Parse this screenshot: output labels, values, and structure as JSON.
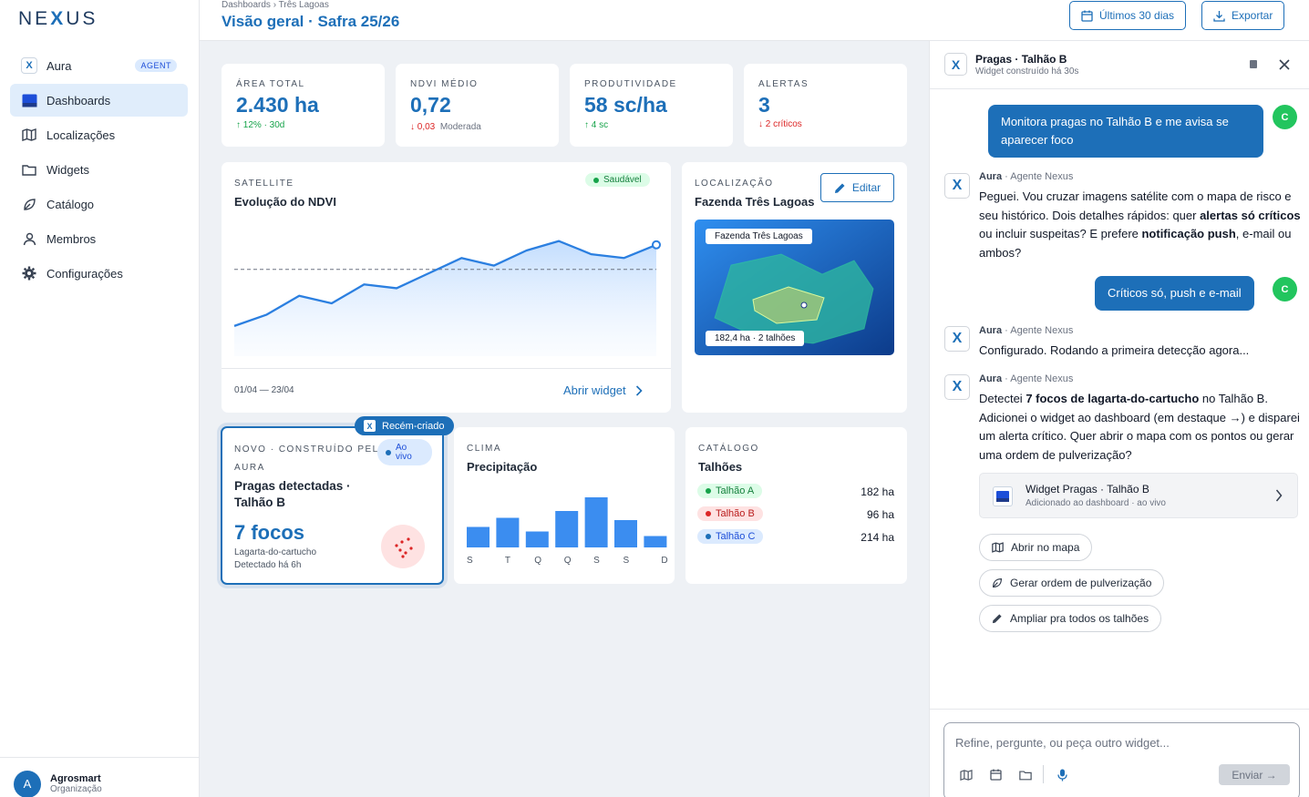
{
  "app": {
    "logo_left": "NE",
    "logo_x": "X",
    "logo_right": "US"
  },
  "sidebar": {
    "items": [
      {
        "label": "Aura",
        "badge": "AGENT",
        "icon": "aura-x-icon"
      },
      {
        "label": "Dashboards",
        "icon": "dashboard-icon",
        "active": true
      },
      {
        "label": "Localizações",
        "icon": "map-icon"
      },
      {
        "label": "Widgets",
        "icon": "folder-icon"
      },
      {
        "label": "Catálogo",
        "icon": "leaf-icon"
      },
      {
        "label": "Membros",
        "icon": "user-icon"
      },
      {
        "label": "Configurações",
        "icon": "gear-icon"
      }
    ],
    "org": {
      "avatar": "A",
      "name": "Agrosmart",
      "sub": "Organização"
    }
  },
  "header": {
    "breadcrumb": "Dashboards › Três Lagoas",
    "title": "Visão geral · Safra 25/26",
    "range_button": "Últimos 30 dias",
    "export_button": "Exportar"
  },
  "kpis": [
    {
      "label": "ÁREA TOTAL",
      "value": "2.430 ha",
      "delta": "↑ 12% · 30d",
      "note": "",
      "trend": "up"
    },
    {
      "label": "NDVI MÉDIO",
      "value": "0,72",
      "delta": "↓ 0,03",
      "note": "Moderada",
      "trend": "down"
    },
    {
      "label": "PRODUTIVIDADE",
      "value": "58 sc/ha",
      "delta": "↑ 4 sc",
      "note": "",
      "trend": "up"
    },
    {
      "label": "ALERTAS",
      "value": "3",
      "delta": "↓ 2 críticos",
      "note": "",
      "trend": "down"
    }
  ],
  "ndvi": {
    "section": "SATELLITE",
    "title": "Evolução do NDVI",
    "status": "Saudável",
    "range": "01/04 — 23/04",
    "open_link": "Abrir widget"
  },
  "location": {
    "section": "LOCALIZAÇÃO",
    "title": "Fazenda Três Lagoas",
    "edit": "Editar",
    "map_label": "Fazenda Três Lagoas",
    "map_caption": "182,4 ha · 2 talhões"
  },
  "pests": {
    "badge": "Recém-criado",
    "section_line1": "NOVO · CONSTRUÍDO PELA",
    "section_line2": "AURA",
    "live": "Ao vivo",
    "title_line1": "Pragas detectadas ·",
    "title_line2": "Talhão B",
    "value": "7 focos",
    "pest": "Lagarta-do-cartucho",
    "detected": "Detectado há 6h"
  },
  "rain": {
    "section": "CLIMA",
    "title": "Precipitação",
    "days": [
      "S",
      "T",
      "Q",
      "Q",
      "S",
      "S",
      "D"
    ]
  },
  "catalog": {
    "section": "CATÁLOGO",
    "title": "Talhões",
    "rows": [
      {
        "name": "Talhão A",
        "area": "182 ha",
        "color": "#16a34a",
        "bg": "#dcfce7",
        "fg": "#15803d"
      },
      {
        "name": "Talhão B",
        "area": "96 ha",
        "color": "#dc2626",
        "bg": "#fee2e2",
        "fg": "#b91c1c"
      },
      {
        "name": "Talhão C",
        "area": "214 ha",
        "color": "#1d6fb8",
        "bg": "#dbeafe",
        "fg": "#1d4ed8"
      }
    ]
  },
  "chat": {
    "title": "Pragas · Talhão B",
    "subtitle": "Widget construído há 30s",
    "user_initial": "C",
    "agent_name": "Aura",
    "agent_role": "· Agente Nexus",
    "msg_user1": "Monitora pragas no Talhão B e me avisa se aparecer foco",
    "msg_ai1_a": "Peguei. Vou cruzar imagens satélite com o mapa de risco e seu histórico. Dois detalhes rápidos: quer ",
    "msg_ai1_b": "alertas só críticos",
    "msg_ai1_c": " ou incluir suspeitas? E prefere ",
    "msg_ai1_d": "notificação push",
    "msg_ai1_e": ", e-mail ou ambos?",
    "msg_user2": "Críticos só, push e e-mail",
    "msg_ai2": "Configurado. Rodando a primeira detecção agora...",
    "msg_ai3_a": "Detectei ",
    "msg_ai3_b": "7 focos de lagarta-do-cartucho",
    "msg_ai3_c": " no Talhão B. Adicionei o widget ao dashboard (em destaque →) e disparei um alerta crítico. Quer abrir o mapa com os pontos ou gerar uma ordem de pulverização?",
    "widget_card_title": "Widget Pragas · Talhão B",
    "widget_card_sub": "Adicionado ao dashboard · ao vivo",
    "actions": [
      "Abrir no mapa",
      "Gerar ordem de pulverização",
      "Ampliar pra todos os talhões"
    ],
    "input_placeholder": "Refine, pergunte, ou peça outro widget...",
    "send": "Enviar →"
  },
  "chart_data": [
    {
      "type": "area",
      "title": "Evolução do NDVI",
      "x": [
        1,
        2,
        3,
        4,
        5,
        6,
        7,
        8,
        9,
        10,
        11,
        12,
        13,
        14
      ],
      "values": [
        0.63,
        0.66,
        0.71,
        0.69,
        0.74,
        0.73,
        0.77,
        0.81,
        0.79,
        0.83,
        0.855,
        0.82,
        0.81,
        0.845
      ],
      "reference": 0.78,
      "ylim": [
        0.55,
        0.9
      ],
      "grid": false
    },
    {
      "type": "bar",
      "title": "Precipitação",
      "categories": [
        "S",
        "T",
        "Q",
        "Q",
        "S",
        "S",
        "D"
      ],
      "values": [
        4.5,
        6.5,
        3.5,
        8,
        11,
        6,
        2.5
      ],
      "ylim": [
        0,
        12
      ]
    }
  ]
}
